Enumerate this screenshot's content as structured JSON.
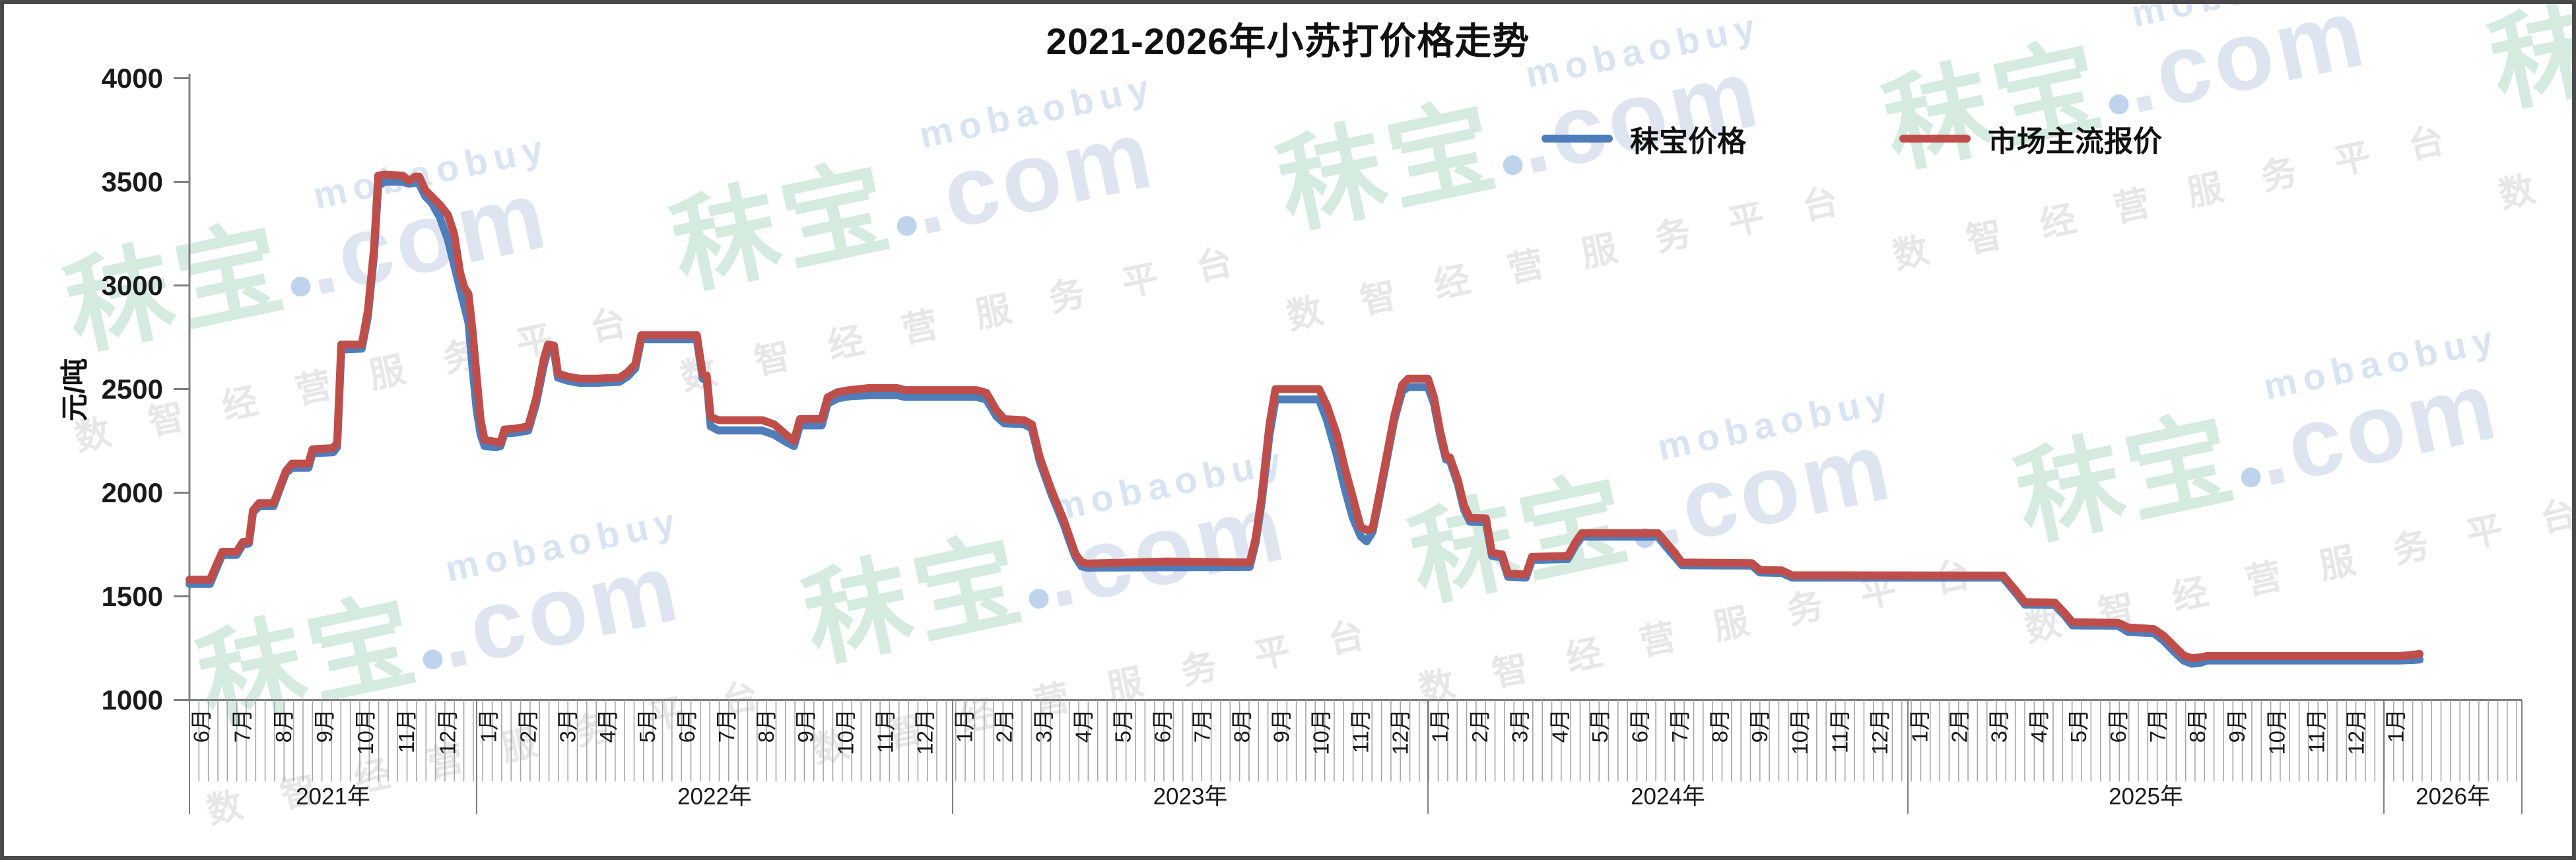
{
  "page": {
    "title": "2021-2026年小苏打价格走势"
  },
  "legend": [
    {
      "label": "秣宝价格",
      "color": "#4E7DBA"
    },
    {
      "label": "市场主流报价",
      "color": "#BF4E4B"
    }
  ],
  "watermark": {
    "brand": "秣宝",
    "domain": ".com",
    "latin": "mobaobuy",
    "slogan": "数智经营服务平台",
    "brand_color": "#D5EBDF",
    "domain_color": "#DEE5F0",
    "latin_color": "#D9E4F3",
    "slogan_color": "#E7E7E7",
    "dot_color": "#BFD4EC"
  },
  "axes": {
    "y_label": "元/吨",
    "y_ticks": [
      4000,
      3500,
      3000,
      2500,
      2000,
      1500,
      1000
    ],
    "axis_color": "#7F7F7F",
    "tick_color": "#A6A6A6",
    "text_color": "#1a1a1a",
    "years": [
      {
        "label": "2021年",
        "months": [
          "6月",
          "7月",
          "8月",
          "9月",
          "10月",
          "11月",
          "12月"
        ]
      },
      {
        "label": "2022年",
        "months": [
          "1月",
          "2月",
          "3月",
          "4月",
          "5月",
          "6月",
          "7月",
          "8月",
          "9月",
          "10月",
          "11月",
          "12月"
        ]
      },
      {
        "label": "2023年",
        "months": [
          "1月",
          "2月",
          "3月",
          "4月",
          "5月",
          "6月",
          "7月",
          "8月",
          "9月",
          "10月",
          "11月",
          "12月"
        ]
      },
      {
        "label": "2024年",
        "months": [
          "1月",
          "2月",
          "3月",
          "4月",
          "5月",
          "6月",
          "7月",
          "8月",
          "9月",
          "10月",
          "11月",
          "12月"
        ]
      },
      {
        "label": "2025年",
        "months": [
          "1月",
          "2月",
          "3月",
          "4月",
          "5月",
          "6月",
          "7月",
          "8月",
          "9月",
          "10月",
          "11月",
          "12月"
        ]
      },
      {
        "label": "2026年",
        "months": [
          "1月"
        ]
      }
    ]
  },
  "chart_data": {
    "type": "line",
    "title": "2021-2026年小苏打价格走势",
    "xlabel": "",
    "ylabel": "元/吨",
    "ylim": [
      1000,
      4000
    ],
    "x_unit": "months elapsed since 2021-06 (0 = Jun 2021, weekly granularity, data ends late Jan 2026)",
    "legend_position": "top-right",
    "grid": false,
    "series_names": [
      "秣宝价格",
      "市场主流报价"
    ],
    "series_colors": [
      "#4E7DBA",
      "#BF4E4B"
    ],
    "rows_format": [
      "month_index",
      "秣宝价格 (yuan/ton)",
      "市场主流报价 (yuan/ton)"
    ],
    "rows": [
      [
        0,
        1560,
        1580
      ],
      [
        0.5,
        1560,
        1580
      ],
      [
        0.7,
        1655,
        1670
      ],
      [
        0.8,
        1700,
        1715
      ],
      [
        1.15,
        1700,
        1715
      ],
      [
        1.3,
        1750,
        1762
      ],
      [
        1.45,
        1755,
        1765
      ],
      [
        1.55,
        1905,
        1915
      ],
      [
        1.7,
        1935,
        1950
      ],
      [
        2.05,
        1935,
        1950
      ],
      [
        2.15,
        1990,
        2000
      ],
      [
        2.35,
        2095,
        2105
      ],
      [
        2.5,
        2120,
        2140
      ],
      [
        2.9,
        2120,
        2140
      ],
      [
        3.0,
        2190,
        2210
      ],
      [
        3.5,
        2195,
        2215
      ],
      [
        3.6,
        2220,
        2240
      ],
      [
        3.7,
        2690,
        2715
      ],
      [
        4.2,
        2695,
        2715
      ],
      [
        4.35,
        2850,
        2880
      ],
      [
        4.5,
        3150,
        3180
      ],
      [
        4.6,
        3480,
        3530
      ],
      [
        4.75,
        3500,
        3535
      ],
      [
        5.2,
        3500,
        3530
      ],
      [
        5.35,
        3490,
        3505
      ],
      [
        5.5,
        3495,
        3525
      ],
      [
        5.6,
        3490,
        3525
      ],
      [
        5.75,
        3430,
        3460
      ],
      [
        5.9,
        3400,
        3430
      ],
      [
        6.1,
        3330,
        3390
      ],
      [
        6.3,
        3220,
        3340
      ],
      [
        6.45,
        3100,
        3250
      ],
      [
        6.6,
        2980,
        3060
      ],
      [
        6.7,
        2900,
        2990
      ],
      [
        6.8,
        2820,
        2960
      ],
      [
        6.9,
        2600,
        2780
      ],
      [
        7.0,
        2400,
        2560
      ],
      [
        7.1,
        2280,
        2350
      ],
      [
        7.2,
        2225,
        2255
      ],
      [
        7.5,
        2220,
        2245
      ],
      [
        7.6,
        2225,
        2240
      ],
      [
        7.7,
        2285,
        2305
      ],
      [
        8.0,
        2290,
        2310
      ],
      [
        8.3,
        2300,
        2320
      ],
      [
        8.5,
        2430,
        2455
      ],
      [
        8.7,
        2620,
        2650
      ],
      [
        8.8,
        2690,
        2715
      ],
      [
        8.95,
        2685,
        2710
      ],
      [
        9.05,
        2555,
        2575
      ],
      [
        9.3,
        2540,
        2560
      ],
      [
        9.6,
        2530,
        2550
      ],
      [
        10.0,
        2530,
        2550
      ],
      [
        10.6,
        2535,
        2555
      ],
      [
        10.8,
        2560,
        2580
      ],
      [
        11.0,
        2600,
        2620
      ],
      [
        11.15,
        2740,
        2760
      ],
      [
        12.55,
        2740,
        2760
      ],
      [
        12.7,
        2550,
        2570
      ],
      [
        12.8,
        2545,
        2565
      ],
      [
        12.9,
        2320,
        2365
      ],
      [
        13.1,
        2300,
        2350
      ],
      [
        14.2,
        2300,
        2350
      ],
      [
        14.5,
        2280,
        2330
      ],
      [
        14.8,
        2245,
        2280
      ],
      [
        15.0,
        2225,
        2250
      ],
      [
        15.15,
        2325,
        2355
      ],
      [
        15.7,
        2325,
        2355
      ],
      [
        15.85,
        2430,
        2460
      ],
      [
        16.1,
        2455,
        2485
      ],
      [
        16.4,
        2465,
        2495
      ],
      [
        16.9,
        2470,
        2505
      ],
      [
        17.6,
        2470,
        2505
      ],
      [
        17.8,
        2462,
        2495
      ],
      [
        19.6,
        2462,
        2495
      ],
      [
        19.85,
        2450,
        2482
      ],
      [
        20.1,
        2370,
        2400
      ],
      [
        20.3,
        2335,
        2355
      ],
      [
        20.8,
        2330,
        2350
      ],
      [
        21.0,
        2310,
        2330
      ],
      [
        21.2,
        2150,
        2170
      ],
      [
        21.5,
        1990,
        2010
      ],
      [
        21.8,
        1850,
        1870
      ],
      [
        22.0,
        1740,
        1760
      ],
      [
        22.1,
        1690,
        1705
      ],
      [
        22.25,
        1645,
        1665
      ],
      [
        22.4,
        1638,
        1658
      ],
      [
        24.4,
        1640,
        1668
      ],
      [
        26.5,
        1642,
        1663
      ],
      [
        26.65,
        1760,
        1780
      ],
      [
        26.8,
        1950,
        1980
      ],
      [
        27.0,
        2280,
        2330
      ],
      [
        27.15,
        2450,
        2500
      ],
      [
        28.25,
        2450,
        2500
      ],
      [
        28.45,
        2350,
        2420
      ],
      [
        28.7,
        2180,
        2280
      ],
      [
        28.9,
        2020,
        2120
      ],
      [
        29.1,
        1880,
        1980
      ],
      [
        29.3,
        1790,
        1835
      ],
      [
        29.45,
        1765,
        1820
      ],
      [
        29.6,
        1810,
        1825
      ],
      [
        29.75,
        1950,
        1970
      ],
      [
        29.95,
        2150,
        2170
      ],
      [
        30.15,
        2350,
        2370
      ],
      [
        30.35,
        2490,
        2520
      ],
      [
        30.5,
        2510,
        2550
      ],
      [
        31.0,
        2510,
        2550
      ],
      [
        31.15,
        2430,
        2460
      ],
      [
        31.3,
        2280,
        2300
      ],
      [
        31.45,
        2160,
        2175
      ],
      [
        31.55,
        2155,
        2170
      ],
      [
        31.75,
        2040,
        2060
      ],
      [
        31.9,
        1920,
        1940
      ],
      [
        32.05,
        1860,
        1878
      ],
      [
        32.45,
        1858,
        1876
      ],
      [
        32.6,
        1695,
        1710
      ],
      [
        32.85,
        1688,
        1703
      ],
      [
        33.0,
        1595,
        1610
      ],
      [
        33.45,
        1590,
        1605
      ],
      [
        33.6,
        1675,
        1690
      ],
      [
        34.5,
        1680,
        1695
      ],
      [
        34.7,
        1750,
        1765
      ],
      [
        34.85,
        1788,
        1805
      ],
      [
        36.75,
        1788,
        1805
      ],
      [
        36.95,
        1740,
        1760
      ],
      [
        37.15,
        1695,
        1715
      ],
      [
        37.35,
        1650,
        1663
      ],
      [
        39.1,
        1648,
        1660
      ],
      [
        39.3,
        1615,
        1627
      ],
      [
        39.85,
        1612,
        1625
      ],
      [
        40.1,
        1590,
        1602
      ],
      [
        45.4,
        1590,
        1600
      ],
      [
        45.7,
        1520,
        1532
      ],
      [
        45.95,
        1460,
        1472
      ],
      [
        46.7,
        1458,
        1470
      ],
      [
        46.95,
        1408,
        1420
      ],
      [
        47.15,
        1360,
        1375
      ],
      [
        48.3,
        1358,
        1372
      ],
      [
        48.55,
        1328,
        1350
      ],
      [
        49.2,
        1322,
        1342
      ],
      [
        49.45,
        1285,
        1310
      ],
      [
        49.7,
        1235,
        1262
      ],
      [
        49.95,
        1190,
        1215
      ],
      [
        50.15,
        1175,
        1202
      ],
      [
        50.35,
        1178,
        1205
      ],
      [
        50.55,
        1190,
        1212
      ],
      [
        55.4,
        1190,
        1212
      ],
      [
        55.75,
        1193,
        1218
      ],
      [
        55.9,
        1195,
        1222
      ]
    ]
  }
}
